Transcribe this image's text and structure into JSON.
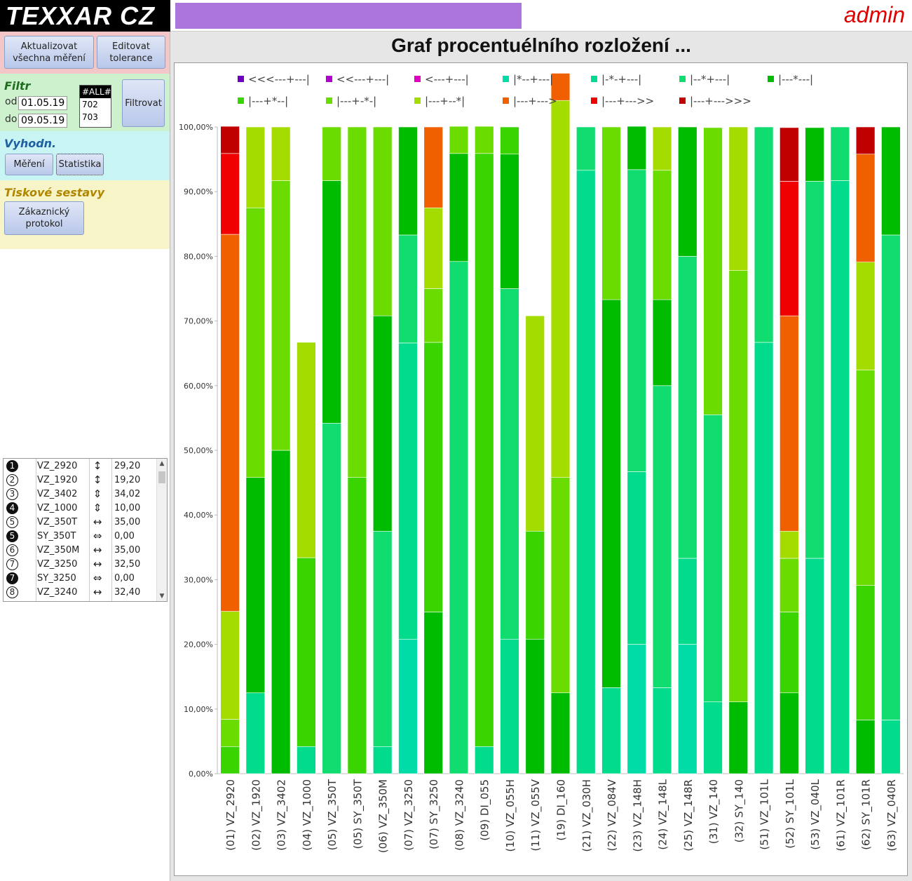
{
  "app": {
    "logo": "TEXXAR CZ",
    "user": "admin",
    "progress_color": "#ab75dc"
  },
  "actions": {
    "refresh_label": "Aktualizovat všechna měření",
    "tolerance_label": "Editovat tolerance"
  },
  "filter": {
    "title": "Filtr",
    "from_label": "od",
    "from_value": "01.05.19",
    "to_label": "do",
    "to_value": "09.05.19",
    "orders": [
      "#ALL#",
      "702",
      "703"
    ],
    "selected_order": "#ALL#",
    "button": "Filtrovat"
  },
  "evaluation": {
    "title": "Vyhodn.",
    "measure_button": "Měření",
    "stats_button": "Statistika"
  },
  "print": {
    "title": "Tiskové sestavy",
    "protocol_button": "Zákaznický protokol"
  },
  "list": [
    {
      "num": "1",
      "dark": true,
      "name": "VZ_2920",
      "arrow": "↕",
      "value": "29,20"
    },
    {
      "num": "2",
      "dark": false,
      "name": "VZ_1920",
      "arrow": "↕",
      "value": "19,20"
    },
    {
      "num": "3",
      "dark": false,
      "name": "VZ_3402",
      "arrow": "⇕",
      "value": "34,02"
    },
    {
      "num": "4",
      "dark": true,
      "name": "VZ_1000",
      "arrow": "⇕",
      "value": "10,00"
    },
    {
      "num": "5",
      "dark": false,
      "name": "VZ_350T",
      "arrow": "↔",
      "value": "35,00"
    },
    {
      "num": "5",
      "dark": true,
      "name": "SY_350T",
      "arrow": "⇔",
      "value": "0,00"
    },
    {
      "num": "6",
      "dark": false,
      "name": "VZ_350M",
      "arrow": "↔",
      "value": "35,00"
    },
    {
      "num": "7",
      "dark": false,
      "name": "VZ_3250",
      "arrow": "↔",
      "value": "32,50"
    },
    {
      "num": "7",
      "dark": true,
      "name": "SY_3250",
      "arrow": "⇔",
      "value": "0,00"
    },
    {
      "num": "8",
      "dark": false,
      "name": "VZ_3240",
      "arrow": "↔",
      "value": "32,40"
    }
  ],
  "chart_data": {
    "type": "bar",
    "stacked": "percent",
    "title": "Graf procentuélního rozložení ...",
    "ylim": [
      0,
      100
    ],
    "yticks": [
      "0,00%",
      "10,00%",
      "20,00%",
      "30,00%",
      "40,00%",
      "50,00%",
      "60,00%",
      "70,00%",
      "80,00%",
      "90,00%",
      "100,00%"
    ],
    "grid": false,
    "legend_position": "top",
    "categories": [
      "(01) VZ_2920",
      "(02) VZ_1920",
      "(03) VZ_3402",
      "(04) VZ_1000",
      "(05) VZ_350T",
      "(05) SY_350T",
      "(06) VZ_350M",
      "(07) VZ_3250",
      "(07) SY_3250",
      "(08) VZ_3240",
      "(09) DI_055",
      "(10) VZ_055H",
      "(11) VZ_055V",
      "(19) DI_160",
      "(21) VZ_030H",
      "(22) VZ_084V",
      "(23) VZ_148H",
      "(24) VZ_148L",
      "(25) VZ_148R",
      "(31) VZ_140",
      "(32) SY_140",
      "(51) VZ_101L",
      "(52) SY_101L",
      "(53) VZ_040L",
      "(61) VZ_101R",
      "(62) SY_101R",
      "(63) VZ_040R"
    ],
    "series": [
      {
        "name": "<<<---+---|",
        "color": "#7000c0",
        "values": [
          0,
          0,
          0,
          0,
          0,
          0,
          0,
          0,
          0,
          0,
          0,
          0,
          0,
          0,
          0,
          0,
          0,
          0,
          0,
          0,
          0,
          0,
          0,
          0,
          0,
          0,
          0
        ]
      },
      {
        "name": "<<---+---|",
        "color": "#b000d0",
        "values": [
          0,
          0,
          0,
          0,
          0,
          0,
          0,
          0,
          0,
          0,
          0,
          0,
          0,
          0,
          0,
          0,
          0,
          0,
          0,
          0,
          0,
          0,
          0,
          0,
          0,
          0,
          0
        ]
      },
      {
        "name": "<---+---|",
        "color": "#e000c0",
        "values": [
          0,
          0,
          0,
          0,
          0,
          0,
          0,
          0,
          0,
          0,
          0,
          0,
          0,
          0,
          0,
          0,
          0,
          0,
          0,
          0,
          0,
          0,
          0,
          0,
          0,
          0,
          0
        ]
      },
      {
        "name": "|*--+---|",
        "color": "#00dca8",
        "values": [
          0,
          0,
          0,
          0,
          0,
          0,
          0,
          20.8,
          0,
          0,
          0,
          0,
          0,
          0,
          0,
          0,
          20,
          0,
          20,
          0,
          0,
          0,
          0,
          0,
          0,
          0,
          0
        ]
      },
      {
        "name": "|-*-+---|",
        "color": "#00dc8c",
        "values": [
          0,
          12.5,
          0,
          4.2,
          0,
          0,
          4.2,
          45.8,
          0,
          0,
          4.2,
          20.8,
          0,
          0,
          93.3,
          13.3,
          26.7,
          13.3,
          13.3,
          11.1,
          0,
          66.7,
          0,
          33.3,
          91.7,
          0,
          8.3
        ]
      },
      {
        "name": "|--*+---|",
        "color": "#10dc70",
        "values": [
          0,
          0,
          0,
          0,
          54.2,
          0,
          33.3,
          16.7,
          0,
          79.2,
          0,
          54.2,
          0,
          0,
          6.7,
          0,
          46.7,
          46.7,
          46.7,
          44.4,
          0,
          33.3,
          0,
          58.3,
          8.3,
          0,
          75
        ]
      },
      {
        "name": "|---*---|",
        "color": "#00bc00",
        "values": [
          0,
          33.3,
          50,
          0,
          37.5,
          0,
          33.3,
          16.7,
          25,
          16.7,
          0,
          20.8,
          20.8,
          12.5,
          0,
          60,
          6.7,
          13.3,
          20,
          0,
          11.1,
          0,
          12.5,
          8.3,
          0,
          8.3,
          16.7
        ]
      },
      {
        "name": "|---+*--|",
        "color": "#3ad400",
        "values": [
          4.2,
          0,
          0,
          29.2,
          0,
          45.8,
          0,
          0,
          41.7,
          0,
          91.7,
          4.2,
          16.7,
          0,
          0,
          0,
          0,
          0,
          0,
          0,
          0,
          0,
          12.5,
          0,
          0,
          20.8,
          0
        ]
      },
      {
        "name": "|---+-*-|",
        "color": "#6adc00",
        "values": [
          4.2,
          41.7,
          41.7,
          0,
          8.3,
          54.2,
          29.2,
          0,
          8.3,
          4.2,
          4.2,
          0,
          0,
          33.3,
          0,
          26.7,
          0,
          20,
          0,
          44.4,
          66.7,
          0,
          8.3,
          0,
          0,
          33.3,
          0
        ]
      },
      {
        "name": "|---+--*|",
        "color": "#a4dc00",
        "values": [
          16.7,
          12.5,
          8.3,
          33.3,
          0,
          0,
          0,
          0,
          12.5,
          0,
          0,
          0,
          33.3,
          58.3,
          0,
          0,
          0,
          6.7,
          0,
          0,
          22.2,
          0,
          4.2,
          0,
          0,
          16.7,
          0
        ]
      },
      {
        "name": "|---+--->",
        "color": "#f06000",
        "values": [
          58.3,
          0,
          0,
          0,
          0,
          0,
          0,
          0,
          12.5,
          0,
          0,
          0,
          0,
          4.2,
          0,
          0,
          0,
          0,
          0,
          0,
          0,
          0,
          33.3,
          0,
          0,
          16.7,
          0
        ]
      },
      {
        "name": "|---+--->>",
        "color": "#f00000",
        "values": [
          12.5,
          0,
          0,
          0,
          0,
          0,
          0,
          0,
          0,
          0,
          0,
          0,
          0,
          0,
          0,
          0,
          0,
          0,
          0,
          0,
          0,
          0,
          20.8,
          0,
          0,
          0,
          0
        ]
      },
      {
        "name": "|---+--->>>",
        "color": "#c00000",
        "values": [
          4.2,
          0,
          0,
          0,
          0,
          0,
          0,
          0,
          0,
          0,
          0,
          0,
          0,
          0,
          0,
          0,
          0,
          0,
          0,
          0,
          0,
          0,
          8.3,
          0,
          0,
          4.2,
          0
        ]
      }
    ]
  }
}
